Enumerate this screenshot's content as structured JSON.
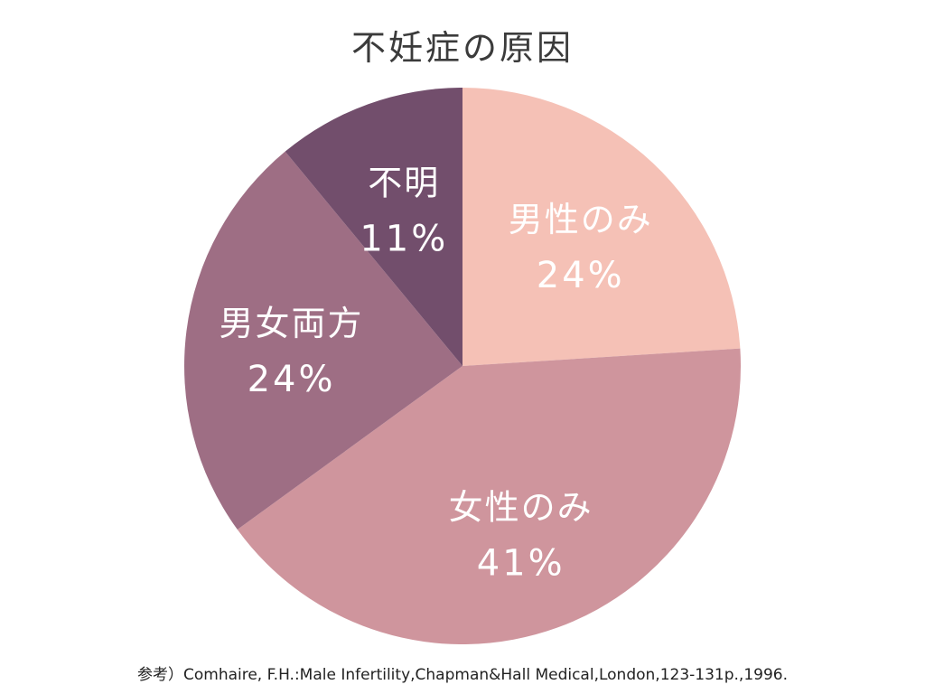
{
  "chart_data": {
    "type": "pie",
    "title": "不妊症の原因",
    "start": "top-clockwise",
    "slices": [
      {
        "label": "男性のみ",
        "value": 24,
        "value_label": "24%",
        "color": "#f5c1b6"
      },
      {
        "label": "女性のみ",
        "value": 41,
        "value_label": "41%",
        "color": "#cf959d"
      },
      {
        "label": "男女両方",
        "value": 24,
        "value_label": "24%",
        "color": "#9e6e84"
      },
      {
        "label": "不明",
        "value": 11,
        "value_label": "11%",
        "color": "#724e6c"
      }
    ]
  },
  "source": "参考）Comhaire, F.H.:Male Infertility,Chapman&Hall Medical,London,123-131p.,1996."
}
